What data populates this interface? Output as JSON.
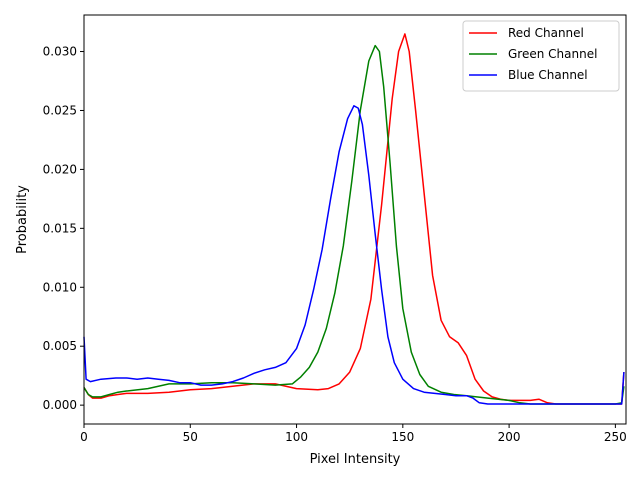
{
  "chart_data": {
    "type": "line",
    "title": "",
    "xlabel": "Pixel Intensity",
    "ylabel": "Probability",
    "xlim": [
      0,
      255
    ],
    "ylim": [
      -0.0016,
      0.0331
    ],
    "xticks": [
      0,
      50,
      100,
      150,
      200,
      250
    ],
    "yticks": [
      0.0,
      0.005,
      0.01,
      0.015,
      0.02,
      0.025,
      0.03
    ],
    "ytick_labels": [
      "0.000",
      "0.005",
      "0.010",
      "0.015",
      "0.020",
      "0.025",
      "0.030"
    ],
    "grid": false,
    "legend_position": "top-right",
    "series": [
      {
        "name": "Red Channel",
        "color": "#ff0000",
        "points": [
          [
            0,
            0.0015
          ],
          [
            2,
            0.0009
          ],
          [
            4,
            0.0006
          ],
          [
            8,
            0.0006
          ],
          [
            12,
            0.0008
          ],
          [
            16,
            0.0009
          ],
          [
            20,
            0.001
          ],
          [
            30,
            0.001
          ],
          [
            40,
            0.0011
          ],
          [
            50,
            0.0013
          ],
          [
            60,
            0.0014
          ],
          [
            70,
            0.0016
          ],
          [
            80,
            0.0018
          ],
          [
            90,
            0.0018
          ],
          [
            100,
            0.0014
          ],
          [
            110,
            0.0013
          ],
          [
            115,
            0.0014
          ],
          [
            120,
            0.0018
          ],
          [
            125,
            0.0028
          ],
          [
            130,
            0.0048
          ],
          [
            135,
            0.009
          ],
          [
            140,
            0.017
          ],
          [
            145,
            0.026
          ],
          [
            148,
            0.03
          ],
          [
            151,
            0.0315
          ],
          [
            153,
            0.03
          ],
          [
            156,
            0.025
          ],
          [
            160,
            0.018
          ],
          [
            164,
            0.011
          ],
          [
            168,
            0.0072
          ],
          [
            172,
            0.0058
          ],
          [
            176,
            0.0053
          ],
          [
            180,
            0.0042
          ],
          [
            184,
            0.0022
          ],
          [
            188,
            0.0012
          ],
          [
            192,
            0.0007
          ],
          [
            196,
            0.0005
          ],
          [
            200,
            0.0004
          ],
          [
            205,
            0.0004
          ],
          [
            210,
            0.0004
          ],
          [
            214,
            0.0005
          ],
          [
            218,
            0.0002
          ],
          [
            222,
            0.0001
          ],
          [
            230,
            0.0001
          ],
          [
            240,
            0.0001
          ],
          [
            250,
            0.0001
          ],
          [
            253,
            0.0001
          ],
          [
            254,
            0.0028
          ]
        ]
      },
      {
        "name": "Green Channel",
        "color": "#008000",
        "points": [
          [
            0,
            0.0015
          ],
          [
            2,
            0.0009
          ],
          [
            4,
            0.0007
          ],
          [
            8,
            0.0007
          ],
          [
            12,
            0.0009
          ],
          [
            16,
            0.0011
          ],
          [
            20,
            0.0012
          ],
          [
            30,
            0.0014
          ],
          [
            40,
            0.0018
          ],
          [
            50,
            0.0018
          ],
          [
            60,
            0.0019
          ],
          [
            70,
            0.0019
          ],
          [
            80,
            0.0018
          ],
          [
            90,
            0.0017
          ],
          [
            98,
            0.0018
          ],
          [
            102,
            0.0024
          ],
          [
            106,
            0.0032
          ],
          [
            110,
            0.0045
          ],
          [
            114,
            0.0065
          ],
          [
            118,
            0.0095
          ],
          [
            122,
            0.0135
          ],
          [
            126,
            0.019
          ],
          [
            130,
            0.025
          ],
          [
            134,
            0.0292
          ],
          [
            137,
            0.0305
          ],
          [
            139,
            0.03
          ],
          [
            141,
            0.027
          ],
          [
            144,
            0.0205
          ],
          [
            147,
            0.0135
          ],
          [
            150,
            0.0082
          ],
          [
            154,
            0.0045
          ],
          [
            158,
            0.0026
          ],
          [
            162,
            0.0016
          ],
          [
            168,
            0.0011
          ],
          [
            174,
            0.0009
          ],
          [
            180,
            0.0008
          ],
          [
            190,
            0.0006
          ],
          [
            200,
            0.0004
          ],
          [
            205,
            0.0002
          ],
          [
            210,
            0.0001
          ],
          [
            220,
            0.0001
          ],
          [
            230,
            0.0001
          ],
          [
            240,
            0.0001
          ],
          [
            250,
            0.0001
          ],
          [
            253,
            0.0002
          ],
          [
            254,
            0.0016
          ]
        ]
      },
      {
        "name": "Blue Channel",
        "color": "#0000ff",
        "points": [
          [
            0,
            0.0058
          ],
          [
            1,
            0.0022
          ],
          [
            3,
            0.002
          ],
          [
            8,
            0.0022
          ],
          [
            15,
            0.0023
          ],
          [
            20,
            0.0023
          ],
          [
            25,
            0.0022
          ],
          [
            30,
            0.0023
          ],
          [
            35,
            0.0022
          ],
          [
            40,
            0.0021
          ],
          [
            45,
            0.0019
          ],
          [
            50,
            0.0019
          ],
          [
            55,
            0.0017
          ],
          [
            60,
            0.0017
          ],
          [
            65,
            0.0018
          ],
          [
            70,
            0.002
          ],
          [
            75,
            0.0023
          ],
          [
            80,
            0.0027
          ],
          [
            85,
            0.003
          ],
          [
            90,
            0.0032
          ],
          [
            95,
            0.0036
          ],
          [
            100,
            0.0048
          ],
          [
            104,
            0.0068
          ],
          [
            108,
            0.0098
          ],
          [
            112,
            0.0132
          ],
          [
            116,
            0.0175
          ],
          [
            120,
            0.0215
          ],
          [
            124,
            0.0243
          ],
          [
            127,
            0.0254
          ],
          [
            129,
            0.0252
          ],
          [
            131,
            0.0238
          ],
          [
            134,
            0.0195
          ],
          [
            137,
            0.0145
          ],
          [
            140,
            0.0098
          ],
          [
            143,
            0.0058
          ],
          [
            146,
            0.0036
          ],
          [
            150,
            0.0022
          ],
          [
            155,
            0.0014
          ],
          [
            160,
            0.0011
          ],
          [
            165,
            0.001
          ],
          [
            170,
            0.0009
          ],
          [
            175,
            0.0008
          ],
          [
            180,
            0.0008
          ],
          [
            183,
            0.0006
          ],
          [
            186,
            0.0002
          ],
          [
            190,
            0.0001
          ],
          [
            200,
            0.0001
          ],
          [
            210,
            0.0001
          ],
          [
            220,
            0.0001
          ],
          [
            230,
            0.0001
          ],
          [
            240,
            0.0001
          ],
          [
            250,
            0.0001
          ],
          [
            253,
            0.0001
          ],
          [
            254,
            0.0028
          ]
        ]
      }
    ]
  }
}
